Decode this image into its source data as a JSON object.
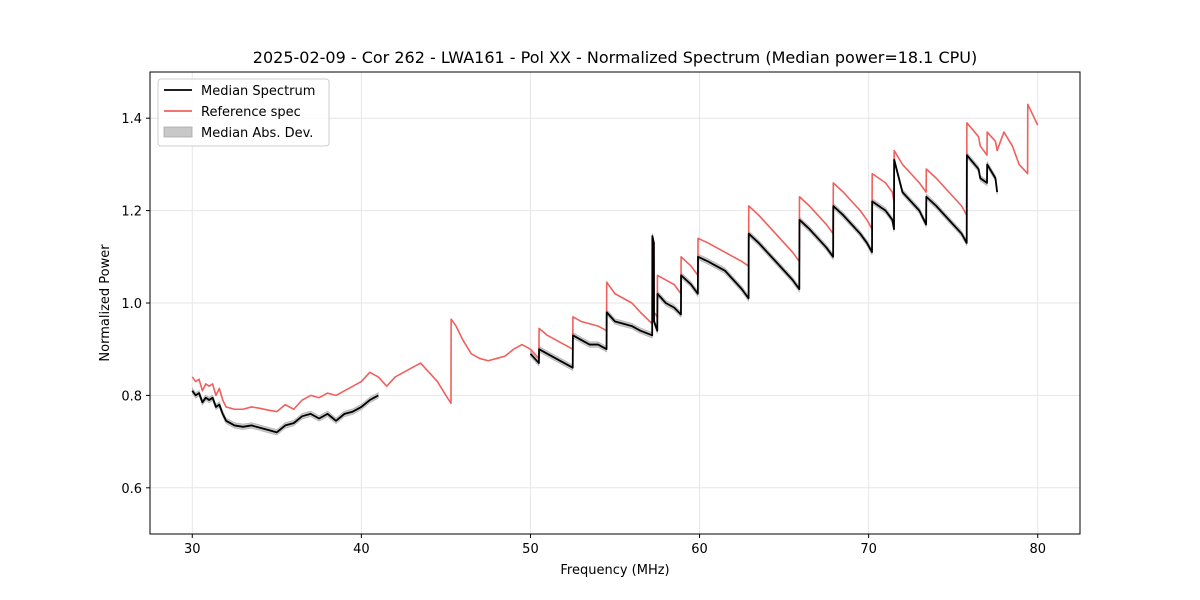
{
  "chart_data": {
    "type": "line",
    "title": "2025-02-09 - Cor 262 - LWA161 - Pol XX - Normalized Spectrum (Median power=18.1 CPU)",
    "xlabel": "Frequency (MHz)",
    "ylabel": "Normalized Power",
    "xlim": [
      27.5,
      82.5
    ],
    "ylim": [
      0.5,
      1.5
    ],
    "x_ticks": [
      30,
      40,
      50,
      60,
      70,
      80
    ],
    "y_ticks": [
      0.6,
      0.8,
      1.0,
      1.2,
      1.4
    ],
    "x_tick_labels": [
      "30",
      "40",
      "50",
      "60",
      "70",
      "80"
    ],
    "y_tick_labels": [
      "0.6",
      "0.8",
      "1.0",
      "1.2",
      "1.4"
    ],
    "grid": true,
    "legend_position": "top-left",
    "legend": [
      {
        "label": "Median Spectrum",
        "kind": "line",
        "color": "#000000"
      },
      {
        "label": "Reference spec",
        "kind": "line",
        "color": "#f0605d"
      },
      {
        "label": "Median Abs. Dev.",
        "kind": "patch",
        "color": "#c8c8c8"
      }
    ],
    "band_halfwidth": 0.006,
    "series": [
      {
        "name": "Reference spec",
        "color": "#f0605d",
        "x": [
          30.0,
          30.2,
          30.4,
          30.6,
          30.8,
          31.0,
          31.2,
          31.4,
          31.6,
          31.8,
          32.0,
          32.5,
          33.0,
          33.5,
          34.0,
          34.5,
          35.0,
          35.5,
          36.0,
          36.5,
          37.0,
          37.5,
          38.0,
          38.5,
          39.0,
          39.5,
          40.0,
          40.5,
          41.0,
          41.5,
          42.0,
          42.5,
          43.0,
          43.5,
          44.0,
          44.5,
          45.0,
          45.3,
          45.31,
          45.6,
          46.0,
          46.5,
          47.0,
          47.5,
          48.0,
          48.5,
          49.0,
          49.5,
          50.0,
          50.5,
          50.51,
          51.0,
          51.5,
          52.0,
          52.5,
          52.51,
          53.0,
          53.5,
          54.0,
          54.5,
          54.51,
          55.0,
          55.5,
          56.0,
          56.5,
          57.2,
          57.21,
          57.3,
          57.31,
          57.5,
          57.51,
          58.0,
          58.5,
          58.9,
          58.91,
          59.5,
          59.9,
          59.91,
          60.5,
          61.0,
          61.5,
          62.0,
          62.5,
          62.9,
          62.91,
          63.5,
          64.0,
          64.5,
          65.0,
          65.5,
          65.9,
          65.91,
          66.5,
          67.0,
          67.5,
          67.9,
          67.91,
          68.5,
          69.0,
          69.5,
          69.9,
          70.2,
          70.21,
          71.0,
          71.4,
          71.5,
          71.51,
          72.0,
          72.5,
          73.0,
          73.4,
          73.41,
          74.0,
          74.5,
          75.0,
          75.5,
          75.8,
          75.81,
          76.5,
          76.6,
          77.0,
          77.01,
          77.5,
          77.6,
          78.0,
          78.5,
          78.9,
          79.4,
          79.41,
          80.0
        ],
        "values": [
          0.84,
          0.83,
          0.835,
          0.81,
          0.825,
          0.82,
          0.825,
          0.8,
          0.815,
          0.79,
          0.775,
          0.77,
          0.77,
          0.775,
          0.772,
          0.768,
          0.765,
          0.78,
          0.77,
          0.79,
          0.8,
          0.795,
          0.805,
          0.8,
          0.81,
          0.82,
          0.83,
          0.85,
          0.84,
          0.82,
          0.84,
          0.85,
          0.86,
          0.87,
          0.85,
          0.83,
          0.8,
          0.783,
          0.965,
          0.95,
          0.92,
          0.89,
          0.88,
          0.875,
          0.88,
          0.885,
          0.9,
          0.91,
          0.9,
          0.88,
          0.945,
          0.93,
          0.92,
          0.91,
          0.9,
          0.97,
          0.96,
          0.955,
          0.95,
          0.94,
          1.045,
          1.02,
          1.01,
          1.0,
          0.98,
          0.955,
          1.14,
          1.13,
          0.98,
          0.97,
          1.06,
          1.05,
          1.04,
          1.02,
          1.1,
          1.08,
          1.06,
          1.14,
          1.13,
          1.12,
          1.11,
          1.1,
          1.09,
          1.08,
          1.21,
          1.19,
          1.17,
          1.15,
          1.13,
          1.11,
          1.09,
          1.23,
          1.21,
          1.19,
          1.17,
          1.15,
          1.26,
          1.24,
          1.22,
          1.2,
          1.18,
          1.16,
          1.28,
          1.26,
          1.24,
          1.22,
          1.33,
          1.3,
          1.28,
          1.26,
          1.24,
          1.29,
          1.27,
          1.25,
          1.23,
          1.21,
          1.19,
          1.39,
          1.36,
          1.34,
          1.32,
          1.37,
          1.35,
          1.33,
          1.37,
          1.34,
          1.3,
          1.28,
          1.43,
          1.385
        ]
      },
      {
        "name": "Median Spectrum",
        "color": "#000000",
        "x": [
          30.0,
          30.2,
          30.4,
          30.6,
          30.8,
          31.0,
          31.2,
          31.4,
          31.6,
          31.8,
          32.0,
          32.5,
          33.0,
          33.5,
          34.0,
          34.5,
          35.0,
          35.5,
          36.0,
          36.5,
          37.0,
          37.5,
          38.0,
          38.5,
          39.0,
          39.5,
          40.0,
          40.5,
          41.0
        ],
        "values": [
          0.81,
          0.8,
          0.805,
          0.785,
          0.795,
          0.79,
          0.795,
          0.775,
          0.78,
          0.76,
          0.745,
          0.735,
          0.732,
          0.735,
          0.73,
          0.725,
          0.72,
          0.735,
          0.74,
          0.755,
          0.76,
          0.75,
          0.76,
          0.745,
          0.76,
          0.765,
          0.775,
          0.79,
          0.8
        ]
      },
      {
        "name": "Median Spectrum",
        "color": "#000000",
        "x": [
          50.0,
          50.5,
          50.51,
          51.0,
          51.5,
          52.0,
          52.5,
          52.51,
          53.0,
          53.5,
          54.0,
          54.5,
          54.51,
          55.0,
          55.5,
          56.0,
          56.5,
          57.2,
          57.21,
          57.3,
          57.31,
          57.5,
          57.51,
          58.0,
          58.5,
          58.9,
          58.91,
          59.5,
          59.9,
          59.91,
          60.5,
          61.0,
          61.5,
          62.0,
          62.5,
          62.9,
          62.91,
          63.5,
          64.0,
          64.5,
          65.0,
          65.5,
          65.9,
          65.91,
          66.5,
          67.0,
          67.5,
          67.9,
          67.91,
          68.5,
          69.0,
          69.5,
          69.9,
          70.2,
          70.21,
          71.0,
          71.4,
          71.5,
          71.51,
          72.0,
          72.5,
          73.0,
          73.4,
          73.41,
          74.0,
          74.5,
          75.0,
          75.5,
          75.8,
          75.81,
          76.5,
          76.6,
          77.0,
          77.01,
          77.5,
          77.6
        ],
        "values": [
          0.89,
          0.87,
          0.9,
          0.89,
          0.88,
          0.87,
          0.86,
          0.93,
          0.92,
          0.91,
          0.91,
          0.9,
          0.98,
          0.96,
          0.955,
          0.95,
          0.94,
          0.93,
          1.145,
          1.13,
          0.96,
          0.94,
          1.02,
          1.0,
          0.99,
          0.975,
          1.06,
          1.04,
          1.02,
          1.1,
          1.09,
          1.08,
          1.07,
          1.05,
          1.03,
          1.01,
          1.15,
          1.13,
          1.11,
          1.09,
          1.07,
          1.05,
          1.03,
          1.18,
          1.16,
          1.14,
          1.12,
          1.1,
          1.21,
          1.19,
          1.17,
          1.15,
          1.13,
          1.11,
          1.22,
          1.2,
          1.18,
          1.16,
          1.31,
          1.24,
          1.22,
          1.2,
          1.17,
          1.23,
          1.21,
          1.19,
          1.17,
          1.15,
          1.13,
          1.32,
          1.29,
          1.27,
          1.26,
          1.3,
          1.27,
          1.24
        ]
      }
    ]
  }
}
